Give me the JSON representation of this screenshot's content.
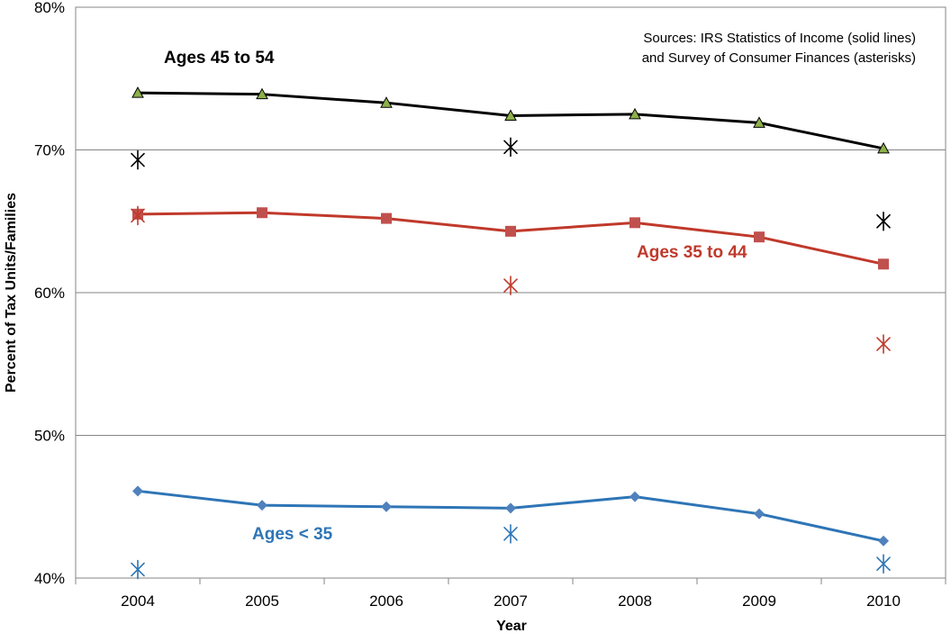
{
  "chart_data": {
    "type": "line",
    "title": "",
    "xlabel": "Year",
    "ylabel": "Percent of Tax Units/Families",
    "x": [
      "2004",
      "2005",
      "2006",
      "2007",
      "2008",
      "2009",
      "2010"
    ],
    "ylim": [
      40,
      80
    ],
    "yticks": [
      "40%",
      "50%",
      "60%",
      "70%",
      "80%"
    ],
    "grid": true,
    "note_lines": [
      "Sources: IRS Statistics of Income (solid lines)",
      "and Survey of Consumer Finances (asterisks)"
    ],
    "series": [
      {
        "name": "Ages 45 to 54",
        "color": "#000000",
        "marker": "triangle",
        "marker_fill": "#8db04a",
        "values": [
          74.0,
          73.9,
          73.3,
          72.4,
          72.5,
          71.9,
          70.1
        ],
        "scf_years": [
          "2004",
          "2007",
          "2010"
        ],
        "scf_values": [
          69.3,
          70.2,
          65.0
        ]
      },
      {
        "name": "Ages 35 to 44",
        "color": "#c0392b",
        "marker": "square",
        "marker_fill": "#c0504d",
        "values": [
          65.5,
          65.6,
          65.2,
          64.3,
          64.9,
          63.9,
          62.0
        ],
        "scf_years": [
          "2004",
          "2007",
          "2010"
        ],
        "scf_values": [
          65.4,
          60.5,
          56.4
        ]
      },
      {
        "name": "Ages < 35",
        "color": "#2e75b6",
        "marker": "diamond",
        "marker_fill": "#4f81bd",
        "values": [
          46.1,
          45.1,
          45.0,
          44.9,
          45.7,
          44.5,
          42.6
        ],
        "scf_years": [
          "2004",
          "2007",
          "2010"
        ],
        "scf_values": [
          40.6,
          43.1,
          41.0
        ]
      }
    ]
  }
}
